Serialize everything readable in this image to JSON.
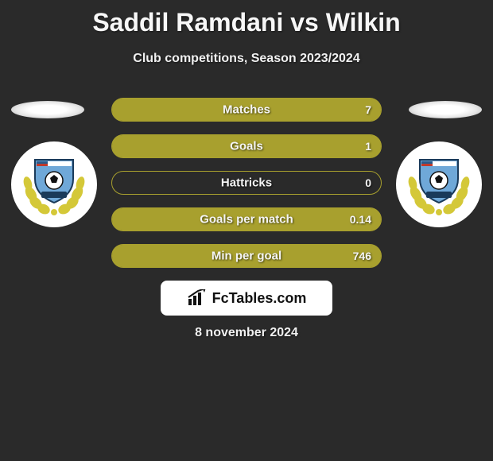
{
  "title": "Saddil Ramdani vs Wilkin",
  "subtitle": "Club competitions, Season 2023/2024",
  "date": "8 november 2024",
  "branding": "FcTables.com",
  "colors": {
    "background": "#2a2a2a",
    "bar_border": "#a8a02e",
    "bar_fill": "#a8a02e",
    "text": "#f5f5f5",
    "branding_bg": "#ffffff",
    "branding_text": "#111111",
    "shield_blue": "#6fa8d8",
    "shield_stripe": "#2b5a8a",
    "laurel": "#d4c838",
    "flag_stripe": "#c0392b"
  },
  "stats": [
    {
      "label": "Matches",
      "value": "7",
      "fill_pct": 100
    },
    {
      "label": "Goals",
      "value": "1",
      "fill_pct": 100
    },
    {
      "label": "Hattricks",
      "value": "0",
      "fill_pct": 0
    },
    {
      "label": "Goals per match",
      "value": "0.14",
      "fill_pct": 100
    },
    {
      "label": "Min per goal",
      "value": "746",
      "fill_pct": 100
    }
  ]
}
